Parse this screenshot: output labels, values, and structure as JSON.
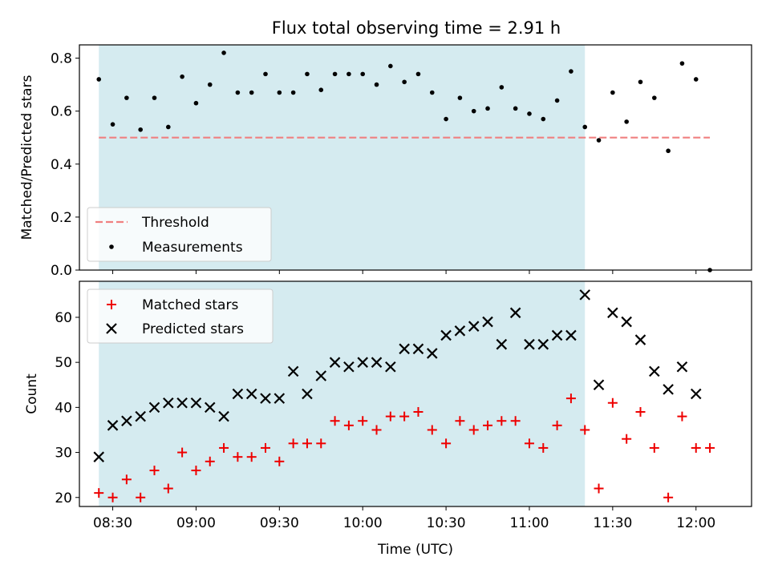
{
  "title": "Flux total observing time = 2.91 h",
  "chart_data": [
    {
      "type": "scatter",
      "ylabel": "Matched/Predicted stars",
      "xlabel": "",
      "ylim": [
        0.0,
        0.85
      ],
      "yticks": [
        0.0,
        0.2,
        0.4,
        0.6,
        0.8
      ],
      "ytick_labels": [
        "0.0",
        "0.2",
        "0.4",
        "0.6",
        "0.8"
      ],
      "legend": {
        "placement": "lower-left",
        "entries": [
          "Threshold",
          "Measurements"
        ]
      },
      "threshold": {
        "name": "Threshold",
        "y": 0.5,
        "x_start": "08:25",
        "x_end": "12:05",
        "color": "#f08080"
      },
      "shaded_interval": {
        "x_start": "08:25",
        "x_end": "11:20",
        "color": "#d5ebf0"
      },
      "series": [
        {
          "name": "Measurements",
          "marker": "dot",
          "color": "#000000",
          "x": [
            "08:25",
            "08:30",
            "08:35",
            "08:40",
            "08:45",
            "08:50",
            "08:55",
            "09:00",
            "09:05",
            "09:10",
            "09:15",
            "09:20",
            "09:25",
            "09:30",
            "09:35",
            "09:40",
            "09:45",
            "09:50",
            "09:55",
            "10:00",
            "10:05",
            "10:10",
            "10:15",
            "10:20",
            "10:25",
            "10:30",
            "10:35",
            "10:40",
            "10:45",
            "10:50",
            "10:55",
            "11:00",
            "11:05",
            "11:10",
            "11:15",
            "11:20",
            "11:25",
            "11:30",
            "11:35",
            "11:40",
            "11:45",
            "11:50",
            "11:55",
            "12:00",
            "12:05"
          ],
          "y": [
            0.72,
            0.55,
            0.65,
            0.53,
            0.65,
            0.54,
            0.73,
            0.63,
            0.7,
            0.82,
            0.67,
            0.67,
            0.74,
            0.67,
            0.67,
            0.74,
            0.68,
            0.74,
            0.74,
            0.74,
            0.7,
            0.77,
            0.71,
            0.74,
            0.67,
            0.57,
            0.65,
            0.6,
            0.61,
            0.69,
            0.61,
            0.59,
            0.57,
            0.64,
            0.75,
            0.54,
            0.49,
            0.67,
            0.56,
            0.71,
            0.65,
            0.45,
            0.78,
            0.72,
            0.0
          ]
        }
      ]
    },
    {
      "type": "scatter",
      "xlabel": "Time (UTC)",
      "ylabel": "Count",
      "ylim": [
        18,
        68
      ],
      "yticks": [
        20,
        30,
        40,
        50,
        60
      ],
      "ytick_labels": [
        "20",
        "30",
        "40",
        "50",
        "60"
      ],
      "xticks": [
        "08:30",
        "09:00",
        "09:30",
        "10:00",
        "10:30",
        "11:00",
        "11:30",
        "12:00"
      ],
      "xlim": [
        "08:18",
        "12:20"
      ],
      "legend": {
        "placement": "top-left",
        "entries": [
          "Matched stars",
          "Predicted stars"
        ]
      },
      "shaded_interval": {
        "x_start": "08:25",
        "x_end": "11:20",
        "color": "#d5ebf0"
      },
      "series": [
        {
          "name": "Matched stars",
          "marker": "plus",
          "color": "#ee0000",
          "x": [
            "08:25",
            "08:30",
            "08:35",
            "08:40",
            "08:45",
            "08:50",
            "08:55",
            "09:00",
            "09:05",
            "09:10",
            "09:15",
            "09:20",
            "09:25",
            "09:30",
            "09:35",
            "09:40",
            "09:45",
            "09:50",
            "09:55",
            "10:00",
            "10:05",
            "10:10",
            "10:15",
            "10:20",
            "10:25",
            "10:30",
            "10:35",
            "10:40",
            "10:45",
            "10:50",
            "10:55",
            "11:00",
            "11:05",
            "11:10",
            "11:15",
            "11:20",
            "11:25",
            "11:30",
            "11:35",
            "11:40",
            "11:45",
            "11:50",
            "11:55",
            "12:00",
            "12:05"
          ],
          "y": [
            21,
            20,
            24,
            20,
            26,
            22,
            30,
            26,
            28,
            31,
            29,
            29,
            31,
            28,
            32,
            32,
            32,
            37,
            36,
            37,
            35,
            38,
            38,
            39,
            35,
            32,
            37,
            35,
            36,
            37,
            37,
            32,
            31,
            36,
            42,
            35,
            22,
            41,
            33,
            39,
            31,
            20,
            38,
            31,
            31
          ]
        },
        {
          "name": "Predicted stars",
          "marker": "x",
          "color": "#000000",
          "x": [
            "08:25",
            "08:30",
            "08:35",
            "08:40",
            "08:45",
            "08:50",
            "08:55",
            "09:00",
            "09:05",
            "09:10",
            "09:15",
            "09:20",
            "09:25",
            "09:30",
            "09:35",
            "09:40",
            "09:45",
            "09:50",
            "09:55",
            "10:00",
            "10:05",
            "10:10",
            "10:15",
            "10:20",
            "10:25",
            "10:30",
            "10:35",
            "10:40",
            "10:45",
            "10:50",
            "10:55",
            "11:00",
            "11:05",
            "11:10",
            "11:15",
            "11:20",
            "11:25",
            "11:30",
            "11:35",
            "11:40",
            "11:45",
            "11:50",
            "11:55",
            "12:00"
          ],
          "y": [
            29,
            36,
            37,
            38,
            40,
            41,
            41,
            41,
            40,
            38,
            43,
            43,
            42,
            42,
            48,
            43,
            47,
            50,
            49,
            50,
            50,
            49,
            53,
            53,
            52,
            56,
            57,
            58,
            59,
            54,
            61,
            54,
            54,
            56,
            56,
            65,
            45,
            61,
            59,
            55,
            48,
            44,
            49,
            43
          ]
        }
      ]
    }
  ]
}
